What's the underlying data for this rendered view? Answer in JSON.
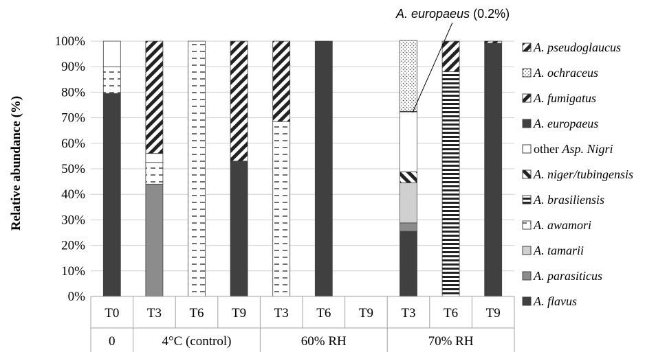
{
  "chart_data": {
    "type": "bar",
    "stacked": true,
    "ylabel": "Relative abundance (%)",
    "ylim": [
      0,
      100
    ],
    "y_ticks": [
      "0%",
      "10%",
      "20%",
      "30%",
      "40%",
      "50%",
      "60%",
      "70%",
      "80%",
      "90%",
      "100%"
    ],
    "grid": true,
    "legend_position": "right",
    "categories": [
      "T0",
      "T3",
      "T6",
      "T9",
      "T3",
      "T6",
      "T9",
      "T3",
      "T6",
      "T9"
    ],
    "groups": [
      {
        "label": "0",
        "count": 1
      },
      {
        "label": "4°C (control)",
        "count": 3
      },
      {
        "label": "60% RH",
        "count": 3
      },
      {
        "label": "70% RH",
        "count": 3
      }
    ],
    "series": [
      {
        "name": "A. flavus",
        "italic": true,
        "color": "#404040",
        "pattern": "solid-dark",
        "values": [
          79.5,
          0,
          0,
          53,
          0,
          100,
          0,
          25.5,
          0,
          99.2
        ]
      },
      {
        "name": "A. parasiticus",
        "italic": true,
        "color": "#8c8c8c",
        "pattern": "solid-mid",
        "values": [
          0,
          44,
          0,
          0,
          0,
          0,
          0,
          3.3,
          0,
          0
        ]
      },
      {
        "name": "A. tamarii",
        "italic": true,
        "color": "#d0d0d0",
        "pattern": "solid-light",
        "values": [
          0,
          0,
          0,
          0,
          0,
          0,
          0,
          15.7,
          0,
          0
        ]
      },
      {
        "name": "A. awamori",
        "italic": true,
        "color": "#ffffff",
        "pattern": "dash-h",
        "values": [
          10.5,
          8.5,
          100,
          0,
          68.5,
          0,
          0,
          0,
          0,
          0
        ]
      },
      {
        "name": "A. brasiliensis",
        "italic": true,
        "color": "#ffffff",
        "pattern": "stripe-h",
        "values": [
          0,
          0,
          0,
          0,
          0,
          0,
          0,
          0,
          88,
          0
        ]
      },
      {
        "name": "A. niger/tubingensis",
        "italic": true,
        "color": "#ffffff",
        "pattern": "diag-up",
        "values": [
          0,
          0,
          0,
          0,
          0,
          0,
          0,
          4.3,
          0,
          0
        ]
      },
      {
        "name": "other Asp. Nigri",
        "italic": false,
        "color": "#ffffff",
        "pattern": "blank",
        "values": [
          10,
          3.5,
          0,
          0,
          0,
          0,
          0,
          23.5,
          0,
          0
        ]
      },
      {
        "name": "A. europaeus",
        "italic": true,
        "color": "#ffffff",
        "pattern": "solid-dark",
        "values": [
          0,
          0,
          0,
          0,
          0,
          0,
          0,
          0.2,
          0,
          0
        ]
      },
      {
        "name": "A. fumigatus",
        "italic": true,
        "color": "#ffffff",
        "pattern": "diag-down",
        "values": [
          0,
          44,
          0,
          47,
          31.5,
          0,
          0,
          0,
          12,
          0
        ]
      },
      {
        "name": "A. ochraceus",
        "italic": true,
        "color": "#ffffff",
        "pattern": "dots",
        "values": [
          0,
          0,
          0,
          0,
          0,
          0,
          0,
          27.8,
          0,
          0
        ]
      },
      {
        "name": "A. pseudoglaucus",
        "italic": true,
        "color": "#ffffff",
        "pattern": "diag-down",
        "values": [
          0,
          0,
          0,
          0,
          0,
          0,
          0,
          0,
          0,
          0.8
        ]
      }
    ],
    "annotation": {
      "italic": "A. europaeus",
      "rest": " (0.2%)"
    }
  }
}
